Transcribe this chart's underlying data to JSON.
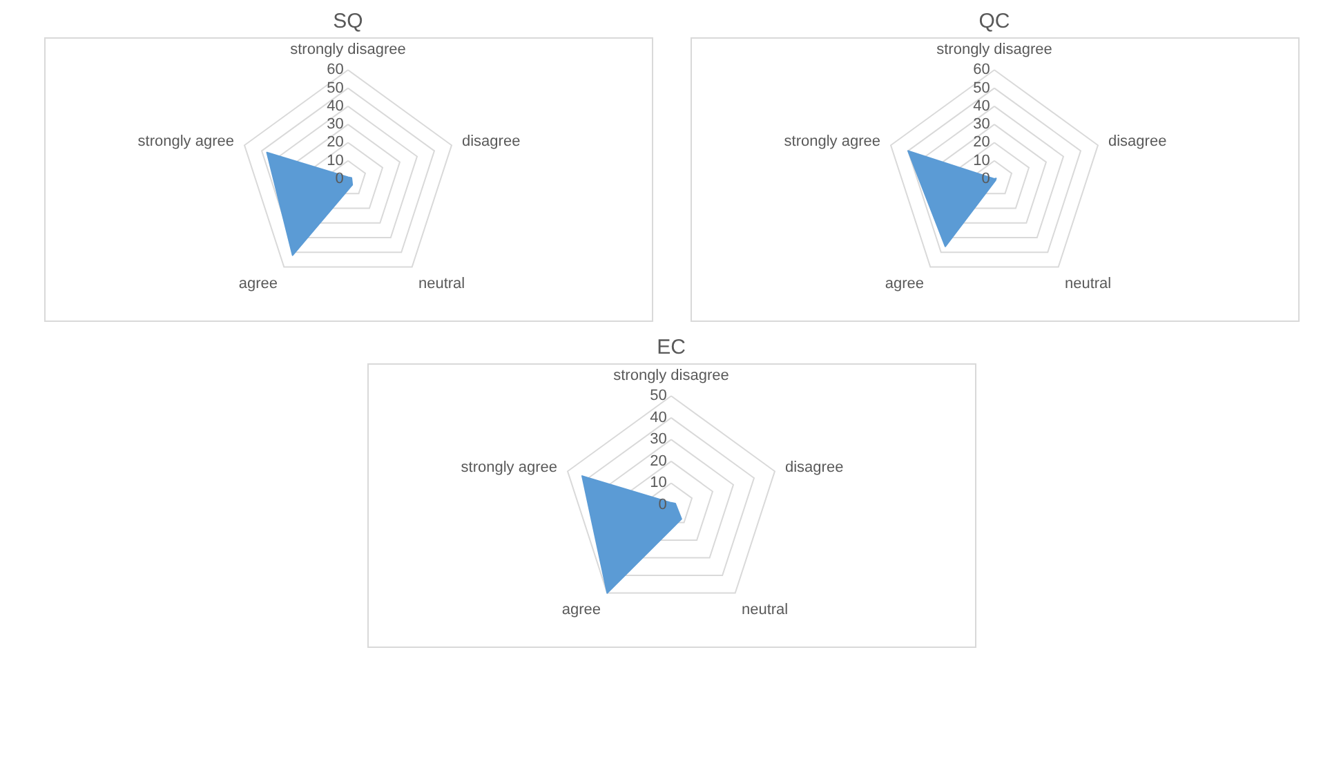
{
  "chart_data": [
    {
      "type": "radar",
      "title": "SQ",
      "categories": [
        "strongly disagree",
        "disagree",
        "neutral",
        "agree",
        "strongly agree"
      ],
      "series": [
        {
          "color": "#5b9bd5",
          "values": [
            1,
            2,
            4,
            52,
            47
          ]
        }
      ],
      "ylim": [
        0,
        60
      ],
      "yticks": [
        0,
        10,
        20,
        30,
        40,
        50,
        60
      ],
      "grid": true
    },
    {
      "type": "radar",
      "title": "QC",
      "categories": [
        "strongly disagree",
        "disagree",
        "neutral",
        "agree",
        "strongly agree"
      ],
      "series": [
        {
          "color": "#5b9bd5",
          "values": [
            0,
            1,
            1,
            46,
            50
          ]
        }
      ],
      "ylim": [
        0,
        60
      ],
      "yticks": [
        0,
        10,
        20,
        30,
        40,
        50,
        60
      ],
      "grid": true
    },
    {
      "type": "radar",
      "title": "EC",
      "categories": [
        "strongly disagree",
        "disagree",
        "neutral",
        "agree",
        "strongly agree"
      ],
      "series": [
        {
          "color": "#5b9bd5",
          "values": [
            1,
            2,
            8,
            50,
            43
          ]
        }
      ],
      "ylim": [
        0,
        50
      ],
      "yticks": [
        0,
        10,
        20,
        30,
        40,
        50
      ],
      "grid": true
    }
  ]
}
